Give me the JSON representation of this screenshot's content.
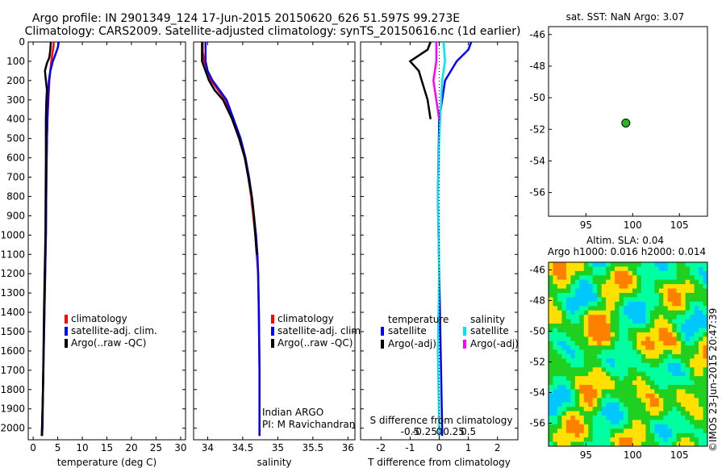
{
  "header": {
    "line1": "Argo profile: IN 2901349_124 17-Jun-2015 20150620_626 51.597S 99.273E",
    "line2": "Climatology: CARS2009. Satellite-adjusted climatology: synTS_20150616.nc (1d earlier)"
  },
  "colors": {
    "climatology": "#ff0000",
    "satellite": "#0000ff",
    "argo": "#000000",
    "sat_salinity": "#00e5ee",
    "argo_salinity": "#ff00ff",
    "point_fill": "#22b822"
  },
  "stamp": "©IMOS 23-Jun-2015 20:47:39",
  "chart_data": [
    {
      "type": "line",
      "title": "",
      "xlabel": "temperature (deg C)",
      "ylabel": "",
      "xlim": [
        -1,
        31
      ],
      "ylim": [
        2060,
        0
      ],
      "xticks": [
        0,
        5,
        10,
        15,
        20,
        25,
        30
      ],
      "yticks": [
        0,
        100,
        200,
        300,
        400,
        500,
        600,
        700,
        800,
        900,
        1000,
        1100,
        1200,
        1300,
        1400,
        1500,
        1600,
        1700,
        1800,
        1900,
        2000
      ],
      "legend": [
        "climatology",
        "satellite-adj. clim.",
        "Argo(..raw -QC)"
      ],
      "legend_position": "lower-middle",
      "series": [
        {
          "name": "climatology",
          "color": "#ff0000",
          "points": [
            [
              4.2,
              0
            ],
            [
              4.1,
              30
            ],
            [
              3.9,
              60
            ],
            [
              3.7,
              100
            ],
            [
              3.5,
              150
            ],
            [
              3.3,
              200
            ],
            [
              3.1,
              300
            ],
            [
              2.9,
              400
            ],
            [
              2.8,
              500
            ],
            [
              2.7,
              700
            ],
            [
              2.6,
              1000
            ],
            [
              2.3,
              1400
            ],
            [
              2.0,
              1800
            ],
            [
              1.8,
              2000
            ],
            [
              1.7,
              2040
            ]
          ]
        },
        {
          "name": "satellite-adj. clim.",
          "color": "#0000ff",
          "points": [
            [
              5.2,
              0
            ],
            [
              5.0,
              30
            ],
            [
              4.6,
              60
            ],
            [
              4.0,
              100
            ],
            [
              3.5,
              150
            ],
            [
              3.2,
              200
            ],
            [
              3.0,
              300
            ],
            [
              2.9,
              400
            ],
            [
              2.8,
              500
            ],
            [
              2.7,
              700
            ],
            [
              2.6,
              1000
            ],
            [
              2.3,
              1400
            ],
            [
              2.0,
              1800
            ],
            [
              1.9,
              2000
            ],
            [
              1.8,
              2040
            ]
          ]
        },
        {
          "name": "Argo(..raw -QC)",
          "color": "#000000",
          "points": [
            [
              3.6,
              0
            ],
            [
              3.5,
              40
            ],
            [
              3.3,
              80
            ],
            [
              2.8,
              110
            ],
            [
              2.4,
              150
            ],
            [
              2.6,
              200
            ],
            [
              2.8,
              250
            ],
            [
              2.7,
              300
            ],
            [
              2.6,
              400
            ],
            [
              2.6,
              600
            ],
            [
              2.5,
              1000
            ],
            [
              2.2,
              1400
            ],
            [
              2.0,
              1800
            ],
            [
              1.8,
              2000
            ],
            [
              1.8,
              2040
            ]
          ]
        }
      ]
    },
    {
      "type": "line",
      "title": "",
      "xlabel": "salinity",
      "ylabel": "",
      "xlim": [
        33.8,
        36.1
      ],
      "ylim": [
        2060,
        0
      ],
      "xticks": [
        34,
        34.5,
        35,
        35.5,
        36
      ],
      "xticklabels": [
        "34",
        "34.5",
        "35",
        "35.5",
        "36"
      ],
      "legend": [
        "climatology",
        "satellite-adj. clim.",
        "Argo(..raw -QC)"
      ],
      "legend_position": "lower-right",
      "annotation": [
        "Indian ARGO",
        "PI: M Ravichandran"
      ],
      "series": [
        {
          "name": "climatology",
          "color": "#ff0000",
          "points": [
            [
              33.93,
              0
            ],
            [
              33.93,
              50
            ],
            [
              33.95,
              100
            ],
            [
              34.0,
              150
            ],
            [
              34.05,
              200
            ],
            [
              34.15,
              250
            ],
            [
              34.25,
              300
            ],
            [
              34.35,
              400
            ],
            [
              34.45,
              500
            ],
            [
              34.53,
              600
            ],
            [
              34.58,
              700
            ],
            [
              34.62,
              800
            ],
            [
              34.65,
              900
            ],
            [
              34.68,
              1000
            ],
            [
              34.7,
              1100
            ],
            [
              34.72,
              1200
            ],
            [
              34.73,
              1400
            ],
            [
              34.74,
              1700
            ],
            [
              34.74,
              2000
            ],
            [
              34.74,
              2040
            ]
          ]
        },
        {
          "name": "satellite-adj. clim.",
          "color": "#0000ff",
          "points": [
            [
              33.97,
              0
            ],
            [
              33.97,
              50
            ],
            [
              33.97,
              100
            ],
            [
              34.0,
              150
            ],
            [
              34.07,
              200
            ],
            [
              34.17,
              250
            ],
            [
              34.27,
              300
            ],
            [
              34.37,
              400
            ],
            [
              34.47,
              500
            ],
            [
              34.54,
              600
            ],
            [
              34.59,
              700
            ],
            [
              34.63,
              800
            ],
            [
              34.66,
              900
            ],
            [
              34.69,
              1000
            ],
            [
              34.71,
              1100
            ],
            [
              34.72,
              1200
            ],
            [
              34.73,
              1400
            ],
            [
              34.74,
              1700
            ],
            [
              34.74,
              2000
            ],
            [
              34.74,
              2040
            ]
          ]
        },
        {
          "name": "Argo(..raw -QC)",
          "color": "#000000",
          "points": [
            [
              33.92,
              0
            ],
            [
              33.92,
              50
            ],
            [
              33.92,
              100
            ],
            [
              33.97,
              150
            ],
            [
              34.02,
              200
            ],
            [
              34.1,
              250
            ],
            [
              34.22,
              300
            ],
            [
              34.35,
              400
            ],
            [
              34.45,
              500
            ],
            [
              34.53,
              600
            ],
            [
              34.58,
              700
            ],
            [
              34.63,
              800
            ],
            [
              34.66,
              900
            ],
            [
              34.68,
              1000
            ],
            [
              34.7,
              1100
            ]
          ]
        }
      ]
    },
    {
      "type": "line",
      "title": "",
      "xlabel": "T difference from climatology",
      "ylabel": "",
      "secondary_xlabel": "S difference from climatology",
      "xlim": [
        -2.7,
        2.7
      ],
      "ylim": [
        2060,
        0
      ],
      "xticks": [
        -2,
        -1,
        0,
        1,
        2
      ],
      "secondary_xticks": [
        -0.5,
        -0.25,
        0,
        0.25,
        0.5
      ],
      "secondary_xticklabels": [
        "-0.5",
        "-0.25",
        "0",
        "0.25",
        "0.5"
      ],
      "legend_headers": [
        "temperature",
        "salinity"
      ],
      "legend": [
        "satellite",
        "Argo(-adj)",
        "satellite",
        "Argo(-adj)"
      ],
      "legend_position": "lower-middle",
      "series": [
        {
          "name": "temperature satellite",
          "color": "#0000ff",
          "points": [
            [
              1.1,
              0
            ],
            [
              1.0,
              40
            ],
            [
              0.6,
              100
            ],
            [
              0.2,
              200
            ],
            [
              0.0,
              400
            ],
            [
              -0.05,
              800
            ],
            [
              0.0,
              1200
            ],
            [
              0.05,
              1600
            ],
            [
              0.1,
              2000
            ],
            [
              0.1,
              2040
            ]
          ]
        },
        {
          "name": "temperature Argo(-adj)",
          "color": "#000000",
          "points": [
            [
              -0.3,
              0
            ],
            [
              -0.4,
              40
            ],
            [
              -1.0,
              100
            ],
            [
              -0.7,
              150
            ],
            [
              -0.6,
              200
            ],
            [
              -0.4,
              300
            ],
            [
              -0.3,
              400
            ]
          ]
        },
        {
          "name": "salinity satellite",
          "color": "#00e5ee",
          "points": [
            [
              0.15,
              0
            ],
            [
              0.2,
              100
            ],
            [
              0.1,
              200
            ],
            [
              0.0,
              500
            ],
            [
              -0.05,
              800
            ],
            [
              0.0,
              1200
            ],
            [
              -0.05,
              1600
            ],
            [
              0.0,
              2000
            ],
            [
              0.0,
              2040
            ]
          ]
        },
        {
          "name": "salinity Argo(-adj)",
          "color": "#ff00ff",
          "points": [
            [
              -0.1,
              0
            ],
            [
              -0.1,
              100
            ],
            [
              -0.2,
              200
            ],
            [
              -0.1,
              300
            ],
            [
              0.0,
              400
            ]
          ]
        }
      ]
    },
    {
      "type": "scatter",
      "title": "sat. SST: NaN Argo: 3.07",
      "xlabel": "",
      "ylabel": "",
      "xlim": [
        91,
        108
      ],
      "ylim": [
        -57.5,
        -45.5
      ],
      "xticks": [
        95,
        100,
        105
      ],
      "yticks": [
        -46,
        -48,
        -50,
        -52,
        -54,
        -56
      ],
      "points": [
        [
          99.27,
          -51.6
        ]
      ]
    },
    {
      "type": "heatmap",
      "title": "Altim. SLA: 0.04",
      "subtitle": "Argo h1000: 0.016 h2000: 0.014",
      "xlabel": "",
      "ylabel": "",
      "xlim": [
        91,
        108
      ],
      "ylim": [
        -57.5,
        -45.5
      ],
      "xticks": [
        95,
        100,
        105
      ],
      "yticks": [
        -46,
        -48,
        -50,
        -52,
        -54,
        -56
      ],
      "colormap": [
        "#00c8ff",
        "#00ffa0",
        "#20d020",
        "#ffe000",
        "#ff8000"
      ],
      "point": [
        99.27,
        -51.6
      ]
    }
  ]
}
